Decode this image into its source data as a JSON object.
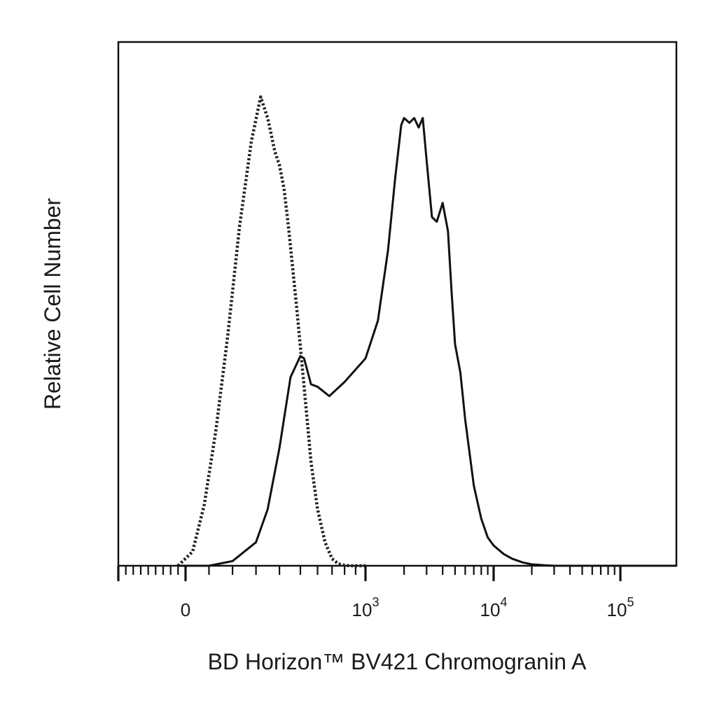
{
  "chart_data": {
    "type": "line",
    "title": "",
    "xlabel": "BD Horizon™ BV421 Chromogranin A",
    "ylabel": "Relative Cell Number",
    "x_scale": "biexponential",
    "xlim": [
      -900,
      200000
    ],
    "ylim": [
      0,
      1
    ],
    "grid": false,
    "legend": "none",
    "x_ticks": [
      {
        "value": 0,
        "base": "0",
        "exp": ""
      },
      {
        "value": 1000,
        "base": "10",
        "exp": "3"
      },
      {
        "value": 10000,
        "base": "10",
        "exp": "4"
      },
      {
        "value": 100000,
        "base": "10",
        "exp": "5"
      }
    ],
    "series": [
      {
        "style": "dotted",
        "color": "#222222",
        "x": [
          -100,
          30,
          80,
          130,
          180,
          230,
          280,
          320,
          350,
          380,
          400,
          420,
          440,
          480,
          520,
          560,
          600,
          650,
          700,
          750,
          800,
          850,
          1000
        ],
        "y": [
          0,
          0.03,
          0.13,
          0.29,
          0.49,
          0.72,
          0.9,
          0.995,
          0.95,
          0.88,
          0.85,
          0.8,
          0.72,
          0.55,
          0.38,
          0.22,
          0.12,
          0.05,
          0.015,
          0.004,
          0.001,
          0,
          0
        ]
      },
      {
        "style": "solid",
        "color": "#111111",
        "x": [
          -100,
          100,
          200,
          300,
          350,
          400,
          450,
          500,
          520,
          560,
          600,
          680,
          800,
          1000,
          1250,
          1500,
          1700,
          1900,
          2000,
          2200,
          2400,
          2600,
          2800,
          3000,
          3300,
          3600,
          4000,
          4400,
          4700,
          5000,
          5500,
          6000,
          7000,
          8000,
          9000,
          10000,
          12000,
          14000,
          17000,
          20000,
          25000,
          30000,
          40000,
          200000
        ],
        "y": [
          0,
          0,
          0.01,
          0.05,
          0.12,
          0.25,
          0.4,
          0.445,
          0.44,
          0.385,
          0.38,
          0.36,
          0.39,
          0.44,
          0.52,
          0.67,
          0.82,
          0.935,
          0.95,
          0.94,
          0.95,
          0.93,
          0.95,
          0.86,
          0.74,
          0.73,
          0.77,
          0.71,
          0.58,
          0.47,
          0.41,
          0.31,
          0.17,
          0.1,
          0.06,
          0.043,
          0.025,
          0.015,
          0.007,
          0.003,
          0.001,
          0,
          0,
          0
        ]
      }
    ]
  }
}
